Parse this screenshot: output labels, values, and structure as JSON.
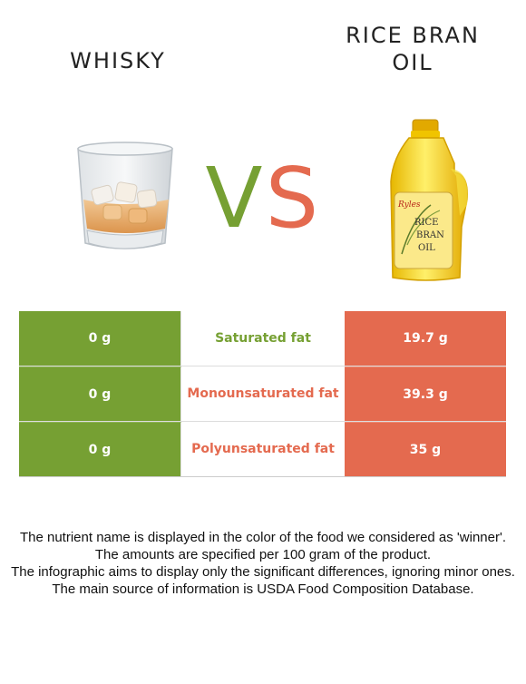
{
  "header": {
    "left_title": "WHISKY",
    "right_title_line1": "RICE BRAN",
    "right_title_line2": "OIL",
    "vs_v": "V",
    "vs_s": "S"
  },
  "colors": {
    "winner_left": "#76a033",
    "winner_right": "#e46a4f"
  },
  "images": {
    "left": "whisky-glass-icon",
    "right": "oil-bottle-icon",
    "bottle_label_brand": "Ryles",
    "bottle_label_line1": "RICE",
    "bottle_label_line2": "BRAN",
    "bottle_label_line3": "OIL"
  },
  "comparison": {
    "rows": [
      {
        "left": "0 g",
        "nutrient": "Saturated fat",
        "right": "19.7 g",
        "winner_color": "#76a033"
      },
      {
        "left": "0 g",
        "nutrient": "Monounsaturated fat",
        "right": "39.3 g",
        "winner_color": "#e46a4f"
      },
      {
        "left": "0 g",
        "nutrient": "Polyunsaturated fat",
        "right": "35 g",
        "winner_color": "#e46a4f"
      }
    ]
  },
  "notes": {
    "line1": "The nutrient name is displayed in the color of the food we considered as 'winner'.",
    "line2": "The amounts are specified per 100 gram of the product.",
    "line3": "The infographic aims to display only the significant differences, ignoring minor ones.",
    "line4": "The main source of information is USDA Food Composition Database."
  }
}
